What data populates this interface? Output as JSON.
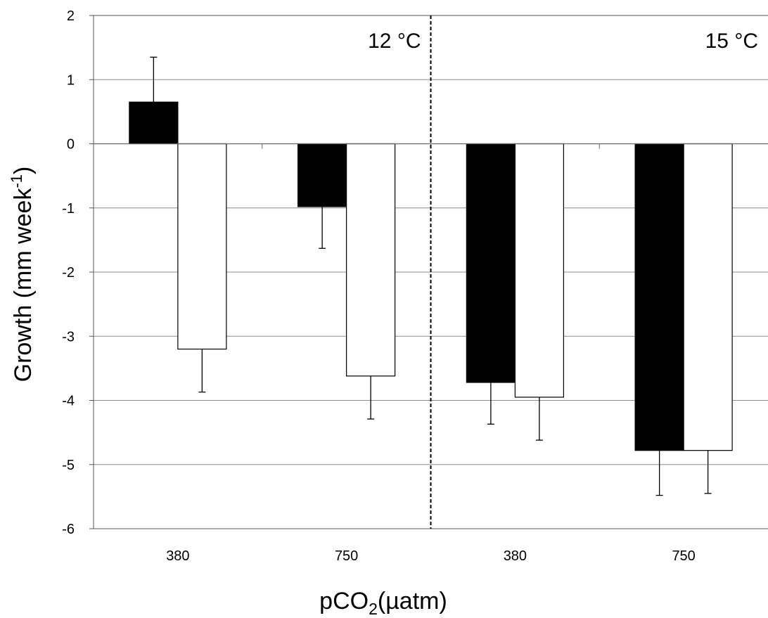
{
  "chart_data": {
    "type": "bar",
    "title": "",
    "xlabel": "pCO2(µatm)",
    "xlabel_parts": {
      "main": "pCO",
      "sub": "2",
      "rest": "(µatm)"
    },
    "ylabel": "Growth (mm week-1)",
    "ylabel_parts": {
      "main": "Growth (mm week",
      "sup": "-1",
      "rest": ")"
    },
    "ylim": [
      -6,
      2
    ],
    "yticks": [
      2,
      1,
      0,
      -1,
      -2,
      -3,
      -4,
      -5,
      -6
    ],
    "grid": true,
    "legend": "none",
    "categories": [
      "380",
      "750",
      "380",
      "750"
    ],
    "panels": [
      {
        "label": "12 °C",
        "categories": [
          0,
          1
        ]
      },
      {
        "label": "15 °C",
        "categories": [
          2,
          3
        ]
      }
    ],
    "series": [
      {
        "color": "#000000",
        "values": [
          0.65,
          -0.98,
          -3.72,
          -4.78
        ],
        "errors": [
          0.7,
          0.65,
          0.65,
          0.7
        ]
      },
      {
        "color": "#ffffff",
        "values": [
          -3.2,
          -3.62,
          -3.95,
          -4.78
        ],
        "errors": [
          0.67,
          0.67,
          0.67,
          0.67
        ]
      }
    ]
  }
}
